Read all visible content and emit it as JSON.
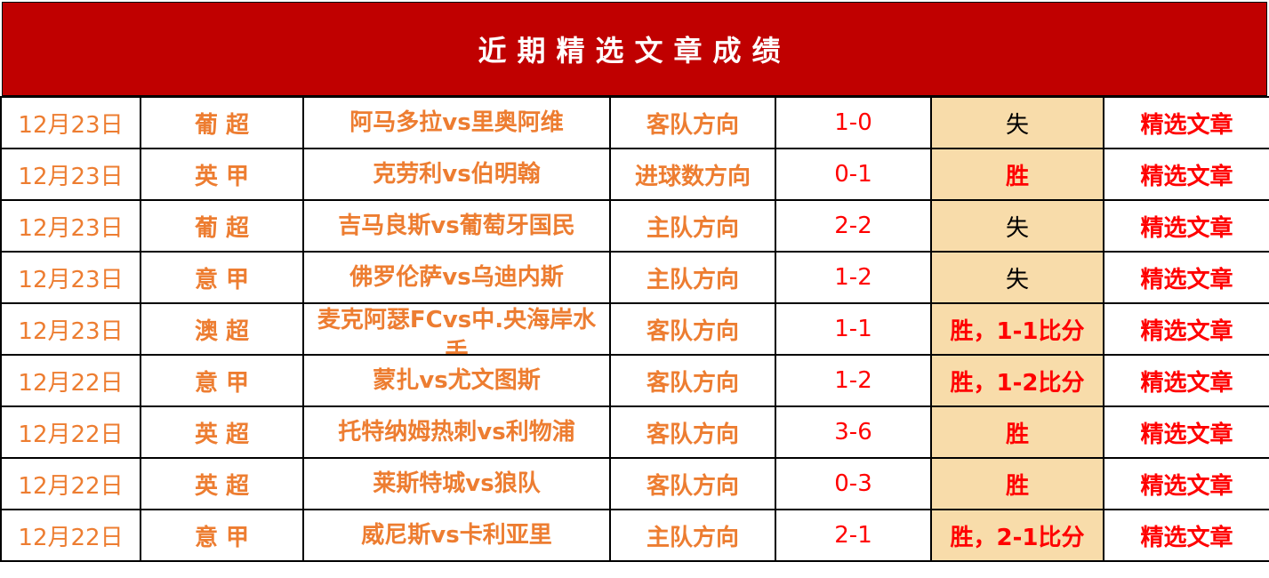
{
  "title": "近期精选文章成绩",
  "colors": {
    "header_bg": "#c00000",
    "orange": "#ed7d31",
    "red": "#ff0000",
    "result_bg": "#f8dcaa"
  },
  "rows": [
    {
      "date": "12月23日",
      "league": "葡 超",
      "match": "阿马多拉vs里奥阿维",
      "direction": "客队方向",
      "score": "1-0",
      "result": "失",
      "link": "精选文章"
    },
    {
      "date": "12月23日",
      "league": "英 甲",
      "match": "克劳利vs伯明翰",
      "direction": "进球数方向",
      "score": "0-1",
      "result": "胜",
      "link": "精选文章"
    },
    {
      "date": "12月23日",
      "league": "葡 超",
      "match": "吉马良斯vs葡萄牙国民",
      "direction": "主队方向",
      "score": "2-2",
      "result": "失",
      "link": "精选文章"
    },
    {
      "date": "12月23日",
      "league": "意 甲",
      "match": "佛罗伦萨vs乌迪内斯",
      "direction": "主队方向",
      "score": "1-2",
      "result": "失",
      "link": "精选文章"
    },
    {
      "date": "12月23日",
      "league": "澳 超",
      "match": "麦克阿瑟FCvs中.央海岸水手",
      "direction": "客队方向",
      "score": "1-1",
      "result": "胜，1-1比分",
      "link": "精选文章"
    },
    {
      "date": "12月22日",
      "league": "意 甲",
      "match": "蒙扎vs尤文图斯",
      "direction": "客队方向",
      "score": "1-2",
      "result": "胜，1-2比分",
      "link": "精选文章"
    },
    {
      "date": "12月22日",
      "league": "英 超",
      "match": "托特纳姆热刺vs利物浦",
      "direction": "客队方向",
      "score": "3-6",
      "result": "胜",
      "link": "精选文章"
    },
    {
      "date": "12月22日",
      "league": "英 超",
      "match": "莱斯特城vs狼队",
      "direction": "客队方向",
      "score": "0-3",
      "result": "胜",
      "link": "精选文章"
    },
    {
      "date": "12月22日",
      "league": "意 甲",
      "match": "威尼斯vs卡利亚里",
      "direction": "主队方向",
      "score": "2-1",
      "result": "胜，2-1比分",
      "link": "精选文章"
    }
  ]
}
